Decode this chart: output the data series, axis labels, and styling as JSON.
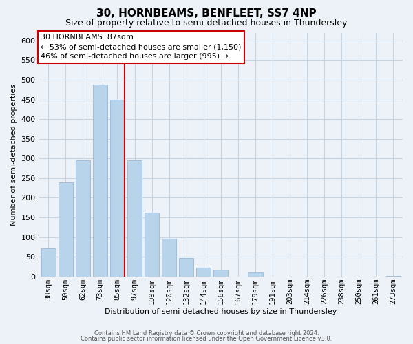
{
  "title": "30, HORNBEAMS, BENFLEET, SS7 4NP",
  "subtitle": "Size of property relative to semi-detached houses in Thundersley",
  "xlabel": "Distribution of semi-detached houses by size in Thundersley",
  "ylabel": "Number of semi-detached properties",
  "footer_line1": "Contains HM Land Registry data © Crown copyright and database right 2024.",
  "footer_line2": "Contains public sector information licensed under the Open Government Licence v3.0.",
  "bar_labels": [
    "38sqm",
    "50sqm",
    "62sqm",
    "73sqm",
    "85sqm",
    "97sqm",
    "109sqm",
    "120sqm",
    "132sqm",
    "144sqm",
    "156sqm",
    "167sqm",
    "179sqm",
    "191sqm",
    "203sqm",
    "214sqm",
    "226sqm",
    "238sqm",
    "250sqm",
    "261sqm",
    "273sqm"
  ],
  "bar_values": [
    72,
    240,
    295,
    487,
    450,
    295,
    162,
    96,
    46,
    22,
    17,
    0,
    10,
    0,
    0,
    0,
    0,
    0,
    0,
    0,
    2
  ],
  "bar_color": "#b8d4ea",
  "bar_edge_color": "#9ab8d8",
  "vline_color": "#cc0000",
  "vline_x_index": 4,
  "annotation_title": "30 HORNBEAMS: 87sqm",
  "annotation_line1": "← 53% of semi-detached houses are smaller (1,150)",
  "annotation_line2": "46% of semi-detached houses are larger (995) →",
  "annotation_box_facecolor": "#ffffff",
  "annotation_box_edgecolor": "#cc0000",
  "ylim": [
    0,
    620
  ],
  "yticks": [
    0,
    50,
    100,
    150,
    200,
    250,
    300,
    350,
    400,
    450,
    500,
    550,
    600
  ],
  "bg_color": "#edf2f9",
  "grid_color": "#c8d4e0",
  "title_fontsize": 11,
  "subtitle_fontsize": 9,
  "axis_label_fontsize": 8,
  "tick_fontsize": 8,
  "annotation_fontsize": 8
}
